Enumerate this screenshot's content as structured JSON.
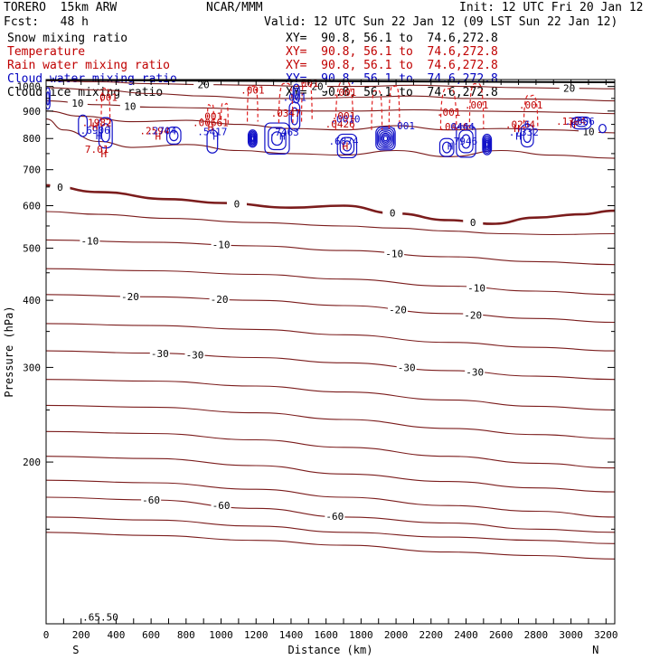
{
  "header": {
    "model": "TORERO  15km ARW",
    "org": "NCAR/MMM",
    "init": "Init: 12 UTC Fri 20 Jan 12",
    "fcst": "Fcst:   48 h",
    "valid": "Valid: 12 UTC Sun 22 Jan 12 (09 LST Sun 22 Jan 12)"
  },
  "fields": [
    {
      "name": "Snow mixing ratio",
      "color": "#000000",
      "xs": "XY=  90.8, 56.1 to  74.6,272.8",
      "xs_color": "#000000"
    },
    {
      "name": "Temperature",
      "color": "#c00000",
      "xs": "XY=  90.8, 56.1 to  74.6,272.8",
      "xs_color": "#c00000"
    },
    {
      "name": "Rain water mixing ratio",
      "color": "#c00000",
      "xs": "XY=  90.8, 56.1 to  74.6,272.8",
      "xs_color": "#c00000"
    },
    {
      "name": "Cloud water mixing ratio",
      "color": "#0000c0",
      "xs": "XY=  90.8, 56.1 to  74.6,272.8",
      "xs_color": "#0000c0"
    },
    {
      "name": "Cloud ice mixing ratio",
      "color": "#000000",
      "xs": "XY=  90.8, 56.1 to  74.6,272.8",
      "xs_color": "#000000"
    }
  ],
  "colors": {
    "temperature": "#7b1c1c",
    "rain": "#e02020",
    "cloud_water": "#1010c8",
    "axis": "#000000"
  },
  "chart_data": {
    "type": "line",
    "xlabel": "Distance (km)",
    "ylabel": "Pressure (hPa)",
    "xlim": [
      0,
      3250
    ],
    "ylim": [
      1030,
      100
    ],
    "y_scale": "log",
    "x_ticks": [
      0,
      100,
      200,
      300,
      400,
      500,
      600,
      700,
      800,
      900,
      1000,
      1100,
      1200,
      1300,
      1400,
      1500,
      1600,
      1700,
      1800,
      1900,
      2000,
      2100,
      2200,
      2300,
      2400,
      2500,
      2600,
      2700,
      2800,
      2900,
      3000,
      3100,
      3200
    ],
    "x_tick_labels": [
      {
        "x": 0,
        "label": "0"
      },
      {
        "x": 200,
        "label": "200"
      },
      {
        "x": 400,
        "label": "400"
      },
      {
        "x": 600,
        "label": "600"
      },
      {
        "x": 800,
        "label": "800"
      },
      {
        "x": 1000,
        "label": "1000"
      },
      {
        "x": 1200,
        "label": "1200"
      },
      {
        "x": 1400,
        "label": "1400"
      },
      {
        "x": 1600,
        "label": "1600"
      },
      {
        "x": 1800,
        "label": "1800"
      },
      {
        "x": 2000,
        "label": "2000"
      },
      {
        "x": 2200,
        "label": "2200"
      },
      {
        "x": 2400,
        "label": "2400"
      },
      {
        "x": 2600,
        "label": "2600"
      },
      {
        "x": 2800,
        "label": "2800"
      },
      {
        "x": 3000,
        "label": "3000"
      },
      {
        "x": 3200,
        "label": "3200"
      }
    ],
    "y_tick_labels": [
      {
        "p": 200,
        "label": "200"
      },
      {
        "p": 300,
        "label": "300"
      },
      {
        "p": 400,
        "label": "400"
      },
      {
        "p": 500,
        "label": "500"
      },
      {
        "p": 600,
        "label": "600"
      },
      {
        "p": 700,
        "label": "700"
      },
      {
        "p": 800,
        "label": "800"
      },
      {
        "p": 900,
        "label": "900"
      },
      {
        "p": 1000,
        "label": "1000"
      }
    ],
    "direction_labels": [
      {
        "x": 170,
        "label": "S"
      },
      {
        "x": 3140,
        "label": "N"
      }
    ],
    "temperature_isotherms": [
      {
        "x": [
          0,
          600,
          1200,
          1700,
          2300,
          2800,
          3250
        ],
        "p": [
          148,
          146,
          143,
          140,
          136,
          134,
          132
        ]
      },
      {
        "x": [
          0,
          600,
          1200,
          1700,
          2300,
          2800,
          3250
        ],
        "p": [
          158,
          156,
          152,
          148,
          145,
          143,
          141
        ]
      },
      {
        "x": [
          0,
          600,
          1200,
          1700,
          2300,
          2800,
          3250
        ],
        "p": [
          172,
          170,
          164,
          158,
          154,
          150,
          148
        ],
        "label": "-60",
        "label_at": [
          600,
          1000,
          1650
        ]
      },
      {
        "x": [
          0,
          600,
          1200,
          1700,
          2300,
          2800,
          3250
        ],
        "p": [
          185,
          183,
          178,
          172,
          166,
          162,
          158
        ]
      },
      {
        "x": [
          0,
          600,
          1200,
          1700,
          2300,
          2800,
          3250
        ],
        "p": [
          205,
          203,
          197,
          190,
          184,
          179,
          176
        ]
      },
      {
        "x": [
          0,
          600,
          1200,
          1700,
          2300,
          2800,
          3250
        ],
        "p": [
          228,
          226,
          220,
          213,
          205,
          199,
          195
        ]
      },
      {
        "x": [
          0,
          600,
          1200,
          1700,
          2300,
          2800,
          3250
        ],
        "p": [
          255,
          253,
          247,
          240,
          231,
          225,
          221
        ]
      },
      {
        "x": [
          0,
          600,
          1200,
          1700,
          2300,
          2800,
          3250
        ],
        "p": [
          285,
          283,
          277,
          270,
          261,
          254,
          250
        ]
      },
      {
        "x": [
          0,
          600,
          1200,
          1700,
          2300,
          2800,
          3250
        ],
        "p": [
          322,
          319,
          313,
          306,
          296,
          289,
          285
        ],
        "label": "-30",
        "label_at": [
          650,
          850,
          2060,
          2450
        ]
      },
      {
        "x": [
          0,
          600,
          1200,
          1700,
          2300,
          2800,
          3250
        ],
        "p": [
          362,
          359,
          353,
          345,
          334,
          327,
          322
        ]
      },
      {
        "x": [
          0,
          600,
          1200,
          1700,
          2300,
          2800,
          3250
        ],
        "p": [
          410,
          406,
          400,
          391,
          378,
          370,
          364
        ],
        "label": "-20",
        "label_at": [
          480,
          990,
          2010,
          2440
        ]
      },
      {
        "x": [
          0,
          600,
          1200,
          1700,
          2300,
          2800,
          3250
        ],
        "p": [
          458,
          454,
          447,
          438,
          425,
          416,
          410
        ],
        "label": "-10",
        "label_at": [
          2460
        ]
      },
      {
        "x": [
          0,
          600,
          1200,
          1700,
          2300,
          2800,
          3250
        ],
        "p": [
          518,
          513,
          505,
          495,
          482,
          472,
          466
        ],
        "label": "-10",
        "label_at": [
          250,
          1000,
          1990
        ]
      },
      {
        "x": [
          0,
          300,
          700,
          1200,
          1700,
          2000,
          2300,
          2600,
          2900,
          3250
        ],
        "p": [
          585,
          578,
          568,
          558,
          550,
          545,
          538,
          532,
          530,
          532
        ]
      },
      {
        "x": [
          0,
          300,
          700,
          1000,
          1400,
          1700,
          2000,
          2300,
          2550,
          2800,
          3050,
          3250
        ],
        "p": [
          655,
          636,
          617,
          607,
          595,
          600,
          580,
          564,
          555,
          570,
          578,
          587
        ],
        "label": "0",
        "label_at": [
          80,
          1090,
          1980,
          2440
        ],
        "bold": true
      }
    ],
    "temperature_low_isotherms": [
      {
        "x": [
          0,
          100,
          300,
          500,
          800,
          1100,
          1400,
          1700,
          2000,
          2300,
          2600,
          2900,
          3250
        ],
        "p": [
          870,
          830,
          790,
          770,
          780,
          760,
          750,
          745,
          760,
          740,
          760,
          745,
          735
        ]
      },
      {
        "x": [
          0,
          200,
          500,
          800,
          1100,
          1400,
          1700,
          2000,
          2300,
          2600,
          2900,
          3250
        ],
        "p": [
          900,
          880,
          860,
          865,
          850,
          835,
          830,
          845,
          830,
          835,
          830,
          820
        ],
        "label": "10",
        "label_at": [
          3100
        ]
      },
      {
        "x": [
          0,
          300,
          600,
          900,
          1200,
          1500,
          1800,
          2100,
          2400,
          2700,
          3000,
          3250
        ],
        "p": [
          940,
          925,
          915,
          912,
          905,
          900,
          900,
          905,
          900,
          898,
          895,
          890
        ],
        "label": "10",
        "label_at": [
          180,
          480
        ]
      },
      {
        "x": [
          0,
          300,
          600,
          900,
          1200,
          1500,
          1800,
          2100,
          2400,
          2700,
          3000,
          3250
        ],
        "p": [
          995,
          985,
          970,
          960,
          950,
          950,
          955,
          960,
          950,
          948,
          945,
          940
        ]
      },
      {
        "x": [
          0,
          300,
          600,
          900,
          1200,
          1500,
          1800,
          2100,
          2400,
          2700,
          3000,
          3250
        ],
        "p": [
          1025,
          1020,
          1012,
          1008,
          1005,
          1000,
          1000,
          1005,
          1000,
          995,
          992,
          990
        ],
        "label": "20",
        "label_at": [
          900,
          1550,
          2990
        ]
      }
    ],
    "ground": {
      "x": [
        0,
        3250
      ],
      "p": [
        1028,
        1018
      ]
    },
    "rain_plumes": [
      {
        "x": 340,
        "p_top": 840,
        "p_bot": 990,
        "w": 25,
        "label": ".001",
        "label_p": 955
      },
      {
        "x": 940,
        "p_top": 850,
        "p_bot": 920,
        "w": 18,
        "label": ".001",
        "label_p": 880
      },
      {
        "x": 1020,
        "p_top": 845,
        "p_bot": 925,
        "w": 20
      },
      {
        "x": 1180,
        "p_top": 860,
        "p_bot": 1000,
        "w": 30,
        "label": ".001",
        "label_p": 985
      },
      {
        "x": 1370,
        "p_top": 855,
        "p_bot": 1010,
        "w": 40,
        "label": ".0347",
        "label_p": 893
      },
      {
        "x": 1490,
        "p_top": 860,
        "p_bot": 1025,
        "w": 30,
        "label": ".001",
        "label_p": 1015
      },
      {
        "x": 1705,
        "p_top": 830,
        "p_bot": 1020,
        "w": 50,
        "label": ".001",
        "label_p": 975
      },
      {
        "x": 1890,
        "p_top": 830,
        "p_bot": 980,
        "w": 30
      },
      {
        "x": 1990,
        "p_top": 835,
        "p_bot": 1000,
        "w": 30
      },
      {
        "x": 2300,
        "p_top": 830,
        "p_bot": 990,
        "w": 45,
        "label": ".001",
        "label_p": 896
      },
      {
        "x": 2460,
        "p_top": 835,
        "p_bot": 1010,
        "w": 40,
        "label": ".001",
        "label_p": 925
      },
      {
        "x": 2770,
        "p_top": 830,
        "p_bot": 960,
        "w": 40,
        "label": ".001",
        "label_p": 925
      }
    ],
    "cloud_cells": [
      {
        "x": 340,
        "p": 820,
        "rx": 38,
        "rp": 55,
        "rings": 2
      },
      {
        "x": 210,
        "p": 845,
        "rx": 25,
        "rp": 40,
        "rings": 1
      },
      {
        "x": 730,
        "p": 810,
        "rx": 40,
        "rp": 30,
        "rings": 2
      },
      {
        "x": 950,
        "p": 790,
        "rx": 30,
        "rp": 40,
        "rings": 1
      },
      {
        "x": 1180,
        "p": 800,
        "rx": 25,
        "rp": 30,
        "rings": 6
      },
      {
        "x": 1320,
        "p": 800,
        "rx": 70,
        "rp": 55,
        "rings": 3
      },
      {
        "x": 1420,
        "p": 880,
        "rx": 30,
        "rp": 55,
        "rings": 2
      },
      {
        "x": 1430,
        "p": 970,
        "rx": 18,
        "rp": 40,
        "rings": 2
      },
      {
        "x": 1720,
        "p": 775,
        "rx": 55,
        "rp": 40,
        "rings": 3
      },
      {
        "x": 1940,
        "p": 800,
        "rx": 55,
        "rp": 40,
        "rings": 7
      },
      {
        "x": 2290,
        "p": 770,
        "rx": 40,
        "rp": 30,
        "rings": 2
      },
      {
        "x": 2400,
        "p": 790,
        "rx": 55,
        "rp": 55,
        "rings": 3
      },
      {
        "x": 2520,
        "p": 780,
        "rx": 25,
        "rp": 35,
        "rings": 6
      },
      {
        "x": 2750,
        "p": 810,
        "rx": 35,
        "rp": 40,
        "rings": 2
      },
      {
        "x": 3060,
        "p": 855,
        "rx": 55,
        "rp": 22,
        "rings": 2
      },
      {
        "x": 3180,
        "p": 835,
        "rx": 20,
        "rp": 15,
        "rings": 1
      },
      {
        "x": 10,
        "p": 950,
        "rx": 12,
        "rp": 45,
        "rings": 2
      }
    ],
    "annotations": [
      {
        "x": 330,
        "p": 750,
        "text": "H",
        "color": "#c00000"
      },
      {
        "x": 290,
        "p": 765,
        "text": "7.01",
        "color": "#c00000"
      },
      {
        "x": 300,
        "p": 810,
        "text": "H",
        "color": "#1010c8"
      },
      {
        "x": 280,
        "p": 829,
        "text": ".6906",
        "color": "#1010c8"
      },
      {
        "x": 280,
        "p": 843,
        "text": "H",
        "color": "#c00000"
      },
      {
        "x": 290,
        "p": 857,
        "text": ".1982",
        "color": "#c00000"
      },
      {
        "x": 640,
        "p": 808,
        "text": "H",
        "color": "#c00000"
      },
      {
        "x": 620,
        "p": 828,
        "text": ".2594",
        "color": "#c00000"
      },
      {
        "x": 660,
        "p": 828,
        "text": ".2704",
        "color": "#1010c8"
      },
      {
        "x": 970,
        "p": 808,
        "text": "H",
        "color": "#1010c8"
      },
      {
        "x": 950,
        "p": 824,
        "text": ".5417",
        "color": "#1010c8"
      },
      {
        "x": 940,
        "p": 840,
        "text": "H",
        "color": "#c00000"
      },
      {
        "x": 940,
        "p": 857,
        "text": ".00661",
        "color": "#c00000"
      },
      {
        "x": 1350,
        "p": 808,
        "text": "H",
        "color": "#1010c8"
      },
      {
        "x": 1360,
        "p": 823,
        "text": ".7463",
        "color": "#1010c8"
      },
      {
        "x": 1420,
        "p": 955,
        "text": ".001",
        "color": "#1010c8"
      },
      {
        "x": 1710,
        "p": 775,
        "text": "H",
        "color": "#c00000"
      },
      {
        "x": 1700,
        "p": 792,
        "text": ".6874",
        "color": "#1010c8"
      },
      {
        "x": 1680,
        "p": 852,
        "text": ".0426",
        "color": "#c00000"
      },
      {
        "x": 1710,
        "p": 870,
        "text": ".0010",
        "color": "#1010c8"
      },
      {
        "x": 1700,
        "p": 882,
        "text": ".001",
        "color": "#c00000"
      },
      {
        "x": 2040,
        "p": 845,
        "text": ".001",
        "color": "#1010c8"
      },
      {
        "x": 2310,
        "p": 775,
        "text": "H",
        "color": "#1010c8"
      },
      {
        "x": 2380,
        "p": 792,
        "text": ".7946",
        "color": "#1010c8"
      },
      {
        "x": 2330,
        "p": 842,
        "text": ".0446",
        "color": "#c00000"
      },
      {
        "x": 2380,
        "p": 842,
        "text": "0444",
        "color": "#1010c8"
      },
      {
        "x": 2700,
        "p": 808,
        "text": "H",
        "color": "#1010c8"
      },
      {
        "x": 2730,
        "p": 823,
        "text": ".7332",
        "color": "#1010c8"
      },
      {
        "x": 2690,
        "p": 835,
        "text": "H",
        "color": "#c00000"
      },
      {
        "x": 2710,
        "p": 850,
        "text": ".0234",
        "color": "#c00000"
      },
      {
        "x": 2750,
        "p": 850,
        "text": "6",
        "color": "#1010c8"
      },
      {
        "x": 3010,
        "p": 850,
        "text": "H",
        "color": "#c00000"
      },
      {
        "x": 3000,
        "p": 862,
        "text": ".1394",
        "color": "#c00000"
      },
      {
        "x": 3050,
        "p": 862,
        "text": ".2806",
        "color": "#1010c8"
      },
      {
        "x": 310,
        "p": 103,
        "text": ".65.50",
        "color": "#000000"
      }
    ]
  }
}
